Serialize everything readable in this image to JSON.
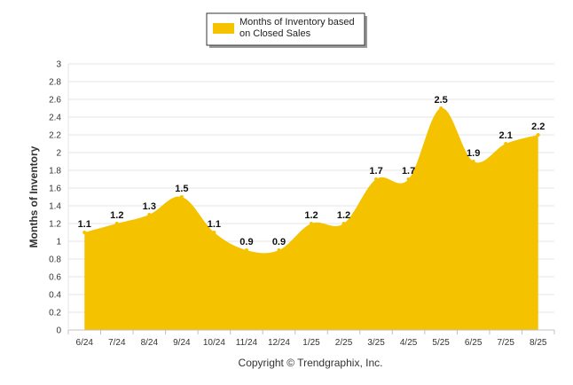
{
  "chart_data": {
    "type": "area",
    "categories": [
      "6/24",
      "7/24",
      "8/24",
      "9/24",
      "10/24",
      "11/24",
      "12/24",
      "1/25",
      "2/25",
      "3/25",
      "4/25",
      "5/25",
      "6/25",
      "7/25",
      "8/25"
    ],
    "series": [
      {
        "name": "Months of Inventory based on Closed Sales",
        "values": [
          1.1,
          1.2,
          1.3,
          1.5,
          1.1,
          0.9,
          0.9,
          1.2,
          1.2,
          1.7,
          1.7,
          2.5,
          1.9,
          2.1,
          2.2
        ],
        "color": "#F5C200"
      }
    ],
    "data_labels": [
      "1.1",
      "1.2",
      "1.3",
      "1.5",
      "1.1",
      "0.9",
      "0.9",
      "1.2",
      "1.2",
      "1.7",
      "1.7",
      "2.5",
      "1.9",
      "2.1",
      "2.2"
    ],
    "ylabel": "Months of Inventory",
    "xlabel": "",
    "ylim": [
      0,
      3
    ],
    "yticks": [
      0,
      0.2,
      0.4,
      0.6,
      0.8,
      1,
      1.2,
      1.4,
      1.6,
      1.8,
      2,
      2.2,
      2.4,
      2.6,
      2.8,
      3
    ],
    "ytick_labels": [
      "0",
      "0.2",
      "0.4",
      "0.6",
      "0.8",
      "1",
      "1.2",
      "1.4",
      "1.6",
      "1.8",
      "2",
      "2.2",
      "2.4",
      "2.6",
      "2.8",
      "3"
    ],
    "grid": true,
    "legend": {
      "position": "top-center",
      "label_line1": "Months of Inventory based",
      "label_line2": "on Closed Sales"
    }
  },
  "footer": {
    "copyright": "Copyright © Trendgraphix, Inc."
  },
  "colors": {
    "area_fill": "#F5C200",
    "grid": "#E6E6E6",
    "axis": "#C0C0C0"
  }
}
